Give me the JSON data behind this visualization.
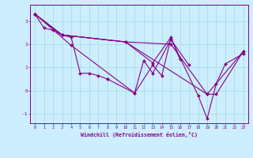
{
  "title": "",
  "xlabel": "Windchill (Refroidissement éolien,°C)",
  "ylabel": "",
  "bg_color": "#cceeff",
  "grid_color": "#aadddd",
  "line_color": "#880088",
  "xlim": [
    -0.5,
    23.5
  ],
  "ylim": [
    -1.4,
    3.7
  ],
  "xticks": [
    0,
    1,
    2,
    3,
    4,
    5,
    6,
    7,
    8,
    9,
    10,
    11,
    12,
    13,
    14,
    15,
    16,
    17,
    18,
    19,
    20,
    21,
    22,
    23
  ],
  "yticks": [
    -1,
    0,
    1,
    2,
    3
  ],
  "curves": [
    {
      "x": [
        0,
        1,
        2,
        3,
        4,
        5,
        6,
        7,
        8
      ],
      "y": [
        3.3,
        2.7,
        2.6,
        2.4,
        2.3,
        0.75,
        0.75,
        0.65,
        0.5
      ]
    },
    {
      "x": [
        8,
        11,
        12,
        13,
        15,
        17
      ],
      "y": [
        0.5,
        -0.1,
        1.3,
        0.75,
        2.2,
        1.1
      ]
    },
    {
      "x": [
        0,
        3,
        10,
        13,
        15,
        16
      ],
      "y": [
        3.3,
        2.4,
        2.1,
        1.2,
        2.3,
        1.35
      ]
    },
    {
      "x": [
        0,
        3,
        10,
        15,
        19,
        23
      ],
      "y": [
        3.3,
        2.4,
        2.1,
        2.0,
        -0.15,
        1.7
      ]
    },
    {
      "x": [
        0,
        3,
        10,
        19,
        20,
        23
      ],
      "y": [
        3.3,
        2.4,
        2.1,
        -0.15,
        -0.15,
        1.7
      ]
    },
    {
      "x": [
        0,
        4,
        11,
        13,
        14,
        15,
        18,
        19,
        20,
        21,
        23
      ],
      "y": [
        3.3,
        1.95,
        -0.1,
        1.1,
        0.65,
        2.25,
        -0.2,
        -1.2,
        0.3,
        1.15,
        1.6
      ]
    }
  ]
}
